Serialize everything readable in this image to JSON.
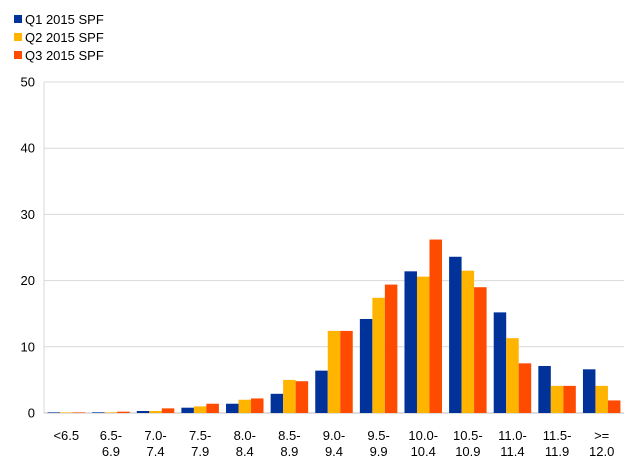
{
  "chart_data": {
    "type": "bar",
    "categories": [
      [
        "<6.5"
      ],
      [
        "6.5-",
        "6.9"
      ],
      [
        "7.0-",
        "7.4"
      ],
      [
        "7.5-",
        "7.9"
      ],
      [
        "8.0-",
        "8.4"
      ],
      [
        "8.5-",
        "8.9"
      ],
      [
        "9.0-",
        "9.4"
      ],
      [
        "9.5-",
        "9.9"
      ],
      [
        "10.0-",
        "10.4"
      ],
      [
        "10.5-",
        "10.9"
      ],
      [
        "11.0-",
        "11.4"
      ],
      [
        "11.5-",
        "11.9"
      ],
      [
        ">=",
        "12.0"
      ]
    ],
    "series": [
      {
        "name": "Q1 2015 SPF",
        "color": "#003299",
        "values": [
          0.05,
          0.1,
          0.3,
          0.8,
          1.4,
          2.9,
          6.4,
          14.2,
          21.4,
          23.6,
          15.2,
          7.1,
          6.6
        ]
      },
      {
        "name": "Q2 2015 SPF",
        "color": "#FFB400",
        "values": [
          0.05,
          0.1,
          0.3,
          1.0,
          2.0,
          5.0,
          12.4,
          17.4,
          20.6,
          21.5,
          11.3,
          4.1,
          4.1
        ]
      },
      {
        "name": "Q3 2015 SPF",
        "color": "#FF4B00",
        "values": [
          0.05,
          0.2,
          0.7,
          1.4,
          2.2,
          4.8,
          12.4,
          19.4,
          26.2,
          19.0,
          7.5,
          4.1,
          1.9
        ]
      }
    ],
    "yticks": [
      "0",
      "10",
      "20",
      "30",
      "40",
      "50"
    ],
    "ylim": [
      0,
      50
    ],
    "grid": true,
    "legend_position": "top-left"
  }
}
